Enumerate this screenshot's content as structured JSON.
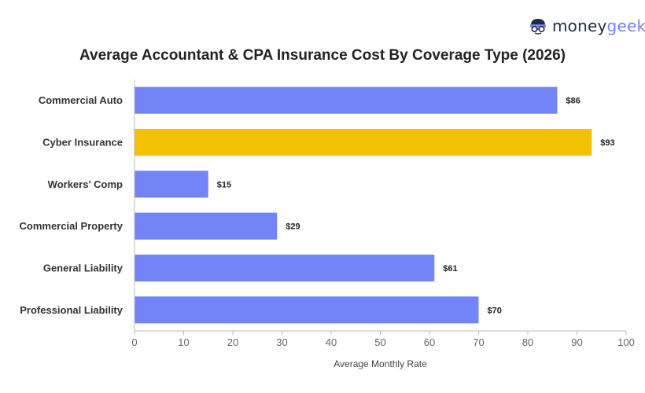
{
  "brand": {
    "part1": "money",
    "part2": "geek"
  },
  "colors": {
    "bar": "#7384f7",
    "highlight": "#f2c200",
    "axis": "#bbbbbb",
    "text": "#333333"
  },
  "chart_data": {
    "type": "bar",
    "orientation": "horizontal",
    "title": "Average Accountant & CPA Insurance Cost By Coverage Type (2026)",
    "xlabel": "Average Monthly Rate",
    "ylabel": "",
    "xlim": [
      0,
      100
    ],
    "ticks": [
      0,
      10,
      20,
      30,
      40,
      50,
      60,
      70,
      80,
      90,
      100
    ],
    "categories": [
      "Commercial Auto",
      "Cyber Insurance",
      "Workers' Comp",
      "Commercial Property",
      "General Liability",
      "Professional Liability"
    ],
    "values": [
      86,
      93,
      15,
      29,
      61,
      70
    ],
    "value_labels": [
      "$86",
      "$93",
      "$15",
      "$29",
      "$61",
      "$70"
    ],
    "highlighted_category": "Cyber Insurance",
    "grid": false,
    "legend": "none"
  }
}
